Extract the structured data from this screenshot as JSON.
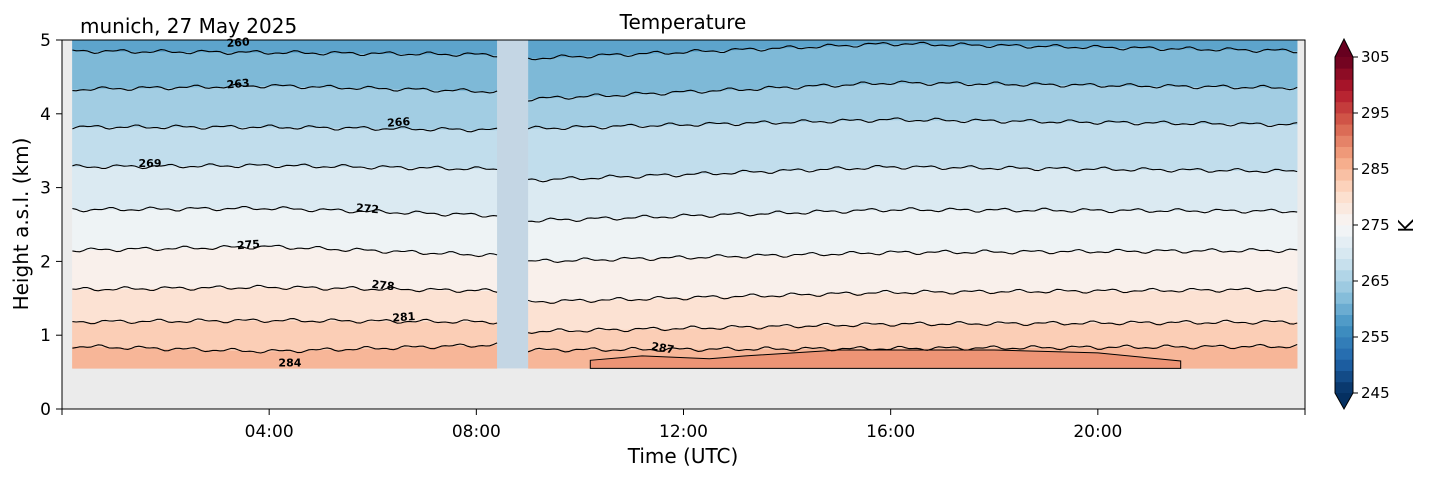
{
  "chart_data": {
    "type": "heatmap",
    "title": "Temperature",
    "location_label": "munich, 27 May 2025",
    "xlabel": "Time (UTC)",
    "ylabel": "Height a.s.l. (km)",
    "xlim_hours": [
      0,
      24
    ],
    "ylim_km": [
      0,
      5
    ],
    "x_ticks": [
      {
        "value": 4,
        "label": "04:00"
      },
      {
        "value": 8,
        "label": "08:00"
      },
      {
        "value": 12,
        "label": "12:00"
      },
      {
        "value": 16,
        "label": "16:00"
      },
      {
        "value": 20,
        "label": "20:00"
      }
    ],
    "y_ticks": [
      {
        "value": 0,
        "label": "0"
      },
      {
        "value": 1,
        "label": "1"
      },
      {
        "value": 2,
        "label": "2"
      },
      {
        "value": 3,
        "label": "3"
      },
      {
        "value": 4,
        "label": "4"
      },
      {
        "value": 5,
        "label": "5"
      }
    ],
    "colorbar": {
      "label": "K",
      "min": 245,
      "max": 305,
      "extend": "both",
      "colormap": "RdBu_r",
      "ticks": [
        {
          "value": 245,
          "label": "245"
        },
        {
          "value": 255,
          "label": "255"
        },
        {
          "value": 265,
          "label": "265"
        },
        {
          "value": 275,
          "label": "275"
        },
        {
          "value": 285,
          "label": "285"
        },
        {
          "value": 295,
          "label": "295"
        },
        {
          "value": 305,
          "label": "305"
        }
      ]
    },
    "data_bottom_km": 0.55,
    "data_gap_hours": [
      8.4,
      9.0
    ],
    "missing_color": "#ebebeb",
    "gap_color": "#c4d6e4",
    "contour_levels": [
      {
        "value": 260,
        "label": "260",
        "height_km": [
          [
            0.2,
            4.85
          ],
          [
            4,
            4.83
          ],
          [
            8.4,
            4.8
          ],
          [
            9.0,
            4.75
          ],
          [
            16,
            4.95
          ],
          [
            24,
            4.85
          ]
        ]
      },
      {
        "value": 263,
        "label": "263",
        "height_km": [
          [
            0.2,
            4.33
          ],
          [
            4,
            4.38
          ],
          [
            8.4,
            4.3
          ],
          [
            9.0,
            4.2
          ],
          [
            16,
            4.42
          ],
          [
            24,
            4.35
          ]
        ]
      },
      {
        "value": 266,
        "label": "266",
        "height_km": [
          [
            0.2,
            3.82
          ],
          [
            4,
            3.82
          ],
          [
            8.4,
            3.78
          ],
          [
            9.0,
            3.8
          ],
          [
            16,
            3.92
          ],
          [
            24,
            3.85
          ]
        ]
      },
      {
        "value": 269,
        "label": "269",
        "height_km": [
          [
            0.2,
            3.28
          ],
          [
            4,
            3.3
          ],
          [
            8.4,
            3.25
          ],
          [
            9.0,
            3.1
          ],
          [
            16,
            3.28
          ],
          [
            24,
            3.22
          ]
        ]
      },
      {
        "value": 272,
        "label": "272",
        "height_km": [
          [
            0.2,
            2.7
          ],
          [
            4,
            2.72
          ],
          [
            8.4,
            2.62
          ],
          [
            9.0,
            2.55
          ],
          [
            16,
            2.7
          ],
          [
            24,
            2.68
          ]
        ]
      },
      {
        "value": 275,
        "label": "275",
        "height_km": [
          [
            0.2,
            2.15
          ],
          [
            4,
            2.2
          ],
          [
            8.4,
            2.08
          ],
          [
            9.0,
            2.0
          ],
          [
            16,
            2.12
          ],
          [
            24,
            2.15
          ]
        ]
      },
      {
        "value": 278,
        "label": "278",
        "height_km": [
          [
            0.2,
            1.62
          ],
          [
            4,
            1.65
          ],
          [
            8.4,
            1.6
          ],
          [
            9.0,
            1.45
          ],
          [
            16,
            1.58
          ],
          [
            24,
            1.62
          ]
        ]
      },
      {
        "value": 281,
        "label": "281",
        "height_km": [
          [
            0.2,
            1.18
          ],
          [
            4,
            1.2
          ],
          [
            8.4,
            1.18
          ],
          [
            9.0,
            1.05
          ],
          [
            16,
            1.15
          ],
          [
            24,
            1.18
          ]
        ]
      },
      {
        "value": 284,
        "label": "284",
        "height_km": [
          [
            0.2,
            0.85
          ],
          [
            4,
            0.78
          ],
          [
            8.4,
            0.87
          ],
          [
            9.0,
            0.8
          ],
          [
            16,
            0.82
          ],
          [
            24,
            0.85
          ]
        ]
      }
    ],
    "contour_labels": [
      {
        "text": "260",
        "x_hours": 3.4,
        "y_km": 4.97,
        "angle": -4
      },
      {
        "text": "263",
        "x_hours": 3.4,
        "y_km": 4.41,
        "angle": -5
      },
      {
        "text": "266",
        "x_hours": 6.5,
        "y_km": 3.89,
        "angle": -4
      },
      {
        "text": "269",
        "x_hours": 1.7,
        "y_km": 3.33,
        "angle": 0
      },
      {
        "text": "272",
        "x_hours": 5.9,
        "y_km": 2.72,
        "angle": 5
      },
      {
        "text": "275",
        "x_hours": 3.6,
        "y_km": 2.23,
        "angle": -4
      },
      {
        "text": "278",
        "x_hours": 6.2,
        "y_km": 1.68,
        "angle": 7
      },
      {
        "text": "281",
        "x_hours": 6.6,
        "y_km": 1.25,
        "angle": -4
      },
      {
        "text": "284",
        "x_hours": 4.4,
        "y_km": 0.63,
        "angle": 0
      },
      {
        "text": "287",
        "x_hours": 11.6,
        "y_km": 0.83,
        "angle": 10
      }
    ]
  }
}
